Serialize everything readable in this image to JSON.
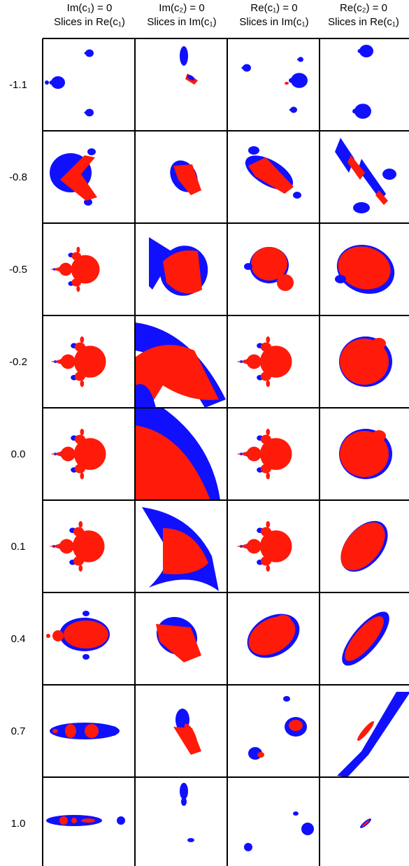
{
  "columns": [
    {
      "line1": "Im(c₁) = 0",
      "line2": "Slices in Re(c₁)"
    },
    {
      "line1": "Im(c₂) = 0",
      "line2": "Slices in Im(c₁)"
    },
    {
      "line1": "Re(c₁) = 0",
      "line2": "Slices in Im(c₁)"
    },
    {
      "line1": "Re(c₂) = 0",
      "line2": "Slices in Re(c₁)"
    }
  ],
  "rows": [
    "-1.1",
    "-0.8",
    "-0.5",
    "-0.2",
    "0.0",
    "0.1",
    "0.4",
    "0.7",
    "1.0"
  ],
  "colors": {
    "inner": "#ff1a0a",
    "outer": "#1010ff",
    "border": "#000000"
  }
}
